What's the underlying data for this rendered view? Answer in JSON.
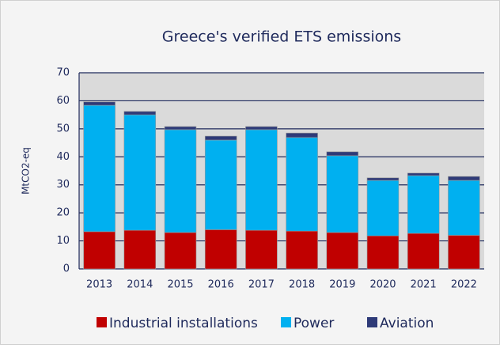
{
  "chart_data": {
    "type": "stacked_bar",
    "title": "Greece's verified ETS emissions",
    "y_label": "MtCO2-eq",
    "categories": [
      "2013",
      "2014",
      "2015",
      "2016",
      "2017",
      "2018",
      "2019",
      "2020",
      "2021",
      "2022"
    ],
    "series": [
      {
        "name": "Industrial installations",
        "color": "#c00000",
        "values": [
          13.3,
          13.8,
          13.0,
          14.0,
          13.8,
          13.5,
          13.0,
          11.8,
          12.7,
          12.0
        ]
      },
      {
        "name": "Power",
        "color": "#00b0f0",
        "values": [
          45.1,
          41.2,
          36.7,
          32.0,
          35.9,
          33.4,
          27.4,
          19.8,
          20.6,
          19.6
        ]
      },
      {
        "name": "Aviation",
        "color": "#2e3a78",
        "values": [
          1.2,
          1.2,
          1.1,
          1.4,
          1.1,
          1.6,
          1.4,
          0.9,
          0.9,
          1.4
        ]
      }
    ],
    "ylim": [
      0,
      70
    ],
    "yticks": [
      0,
      10,
      20,
      30,
      40,
      50,
      60,
      70
    ],
    "grid": true
  }
}
